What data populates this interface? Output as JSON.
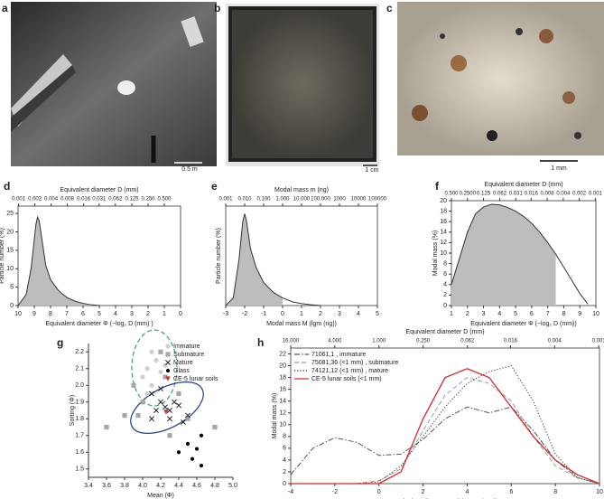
{
  "photos": [
    {
      "label": "a",
      "scale": "0.5 m"
    },
    {
      "label": "b",
      "scale": "1 cm"
    },
    {
      "label": "c",
      "scale": "1 mm"
    }
  ],
  "chart_data": [
    {
      "type": "area",
      "label": "d",
      "xlabel": "Equivalent diameter Φ (−log₂ D (mm) )",
      "ylabel": "Particle number (%)",
      "x2label": "Equivalent diameter D (mm)",
      "xlim": [
        10,
        0
      ],
      "xticks": [
        10,
        9,
        8,
        7,
        6,
        5,
        4,
        3,
        2,
        1,
        0
      ],
      "ylim": [
        0,
        27
      ],
      "yticks": [
        0,
        5,
        10,
        15,
        20,
        25
      ],
      "x2lim": [
        0.0009765625,
        1
      ],
      "x2log": true,
      "x2ticks": [
        0.001,
        0.002,
        0.004,
        0.008,
        0.016,
        0.031,
        0.062,
        0.125,
        {
          "value": 0.25,
          "label": "0.250"
        },
        {
          "value": 0.5,
          "label": "0.500"
        }
      ],
      "x": [
        10,
        9.5,
        9.2,
        9,
        8.9,
        8.8,
        8.7,
        8.5,
        8.3,
        8,
        7.5,
        7,
        6.5,
        6,
        5.5,
        5
      ],
      "values": [
        0,
        3,
        10,
        18,
        22,
        24,
        23,
        17,
        11,
        7,
        4,
        2.2,
        1.2,
        0.6,
        0.2,
        0
      ],
      "color": "#333333",
      "fill": "#bdbdbd"
    },
    {
      "type": "area",
      "label": "e",
      "xlabel": "Modal mass M (lgm (ng))",
      "ylabel": "Particle number (%)",
      "x2label": "Modal mass m (ng)",
      "xlim": [
        -3,
        5
      ],
      "xticks": [
        -3,
        -2,
        -1,
        0,
        1,
        2,
        3,
        4,
        5
      ],
      "ylim": [
        0,
        26
      ],
      "x2lim": [
        0.001,
        100000
      ],
      "x2log": true,
      "x2ticks": [
        0.001,
        {
          "value": 0.01,
          "label": "0.010"
        },
        {
          "value": 0.1,
          "label": "0.100"
        },
        {
          "value": 1,
          "label": "1.000"
        },
        {
          "value": 10,
          "label": "10.000"
        },
        {
          "value": 100,
          "label": "100.000"
        },
        1000,
        10000,
        100000
      ],
      "x": [
        -3,
        -2.6,
        -2.3,
        -2.1,
        -2,
        -1.9,
        -1.7,
        -1.4,
        -1,
        -0.5,
        0,
        0.5,
        1,
        1.5,
        2
      ],
      "values": [
        0,
        2,
        12,
        22,
        24,
        22,
        15,
        10,
        6,
        3.5,
        2,
        1,
        0.5,
        0.2,
        0
      ],
      "shaded_range": [
        -3,
        0
      ],
      "color": "#333333",
      "fill": "#bdbdbd"
    },
    {
      "type": "area",
      "label": "f",
      "xlabel": "Equivalent diameter Φ (−log₂ D (mm))",
      "ylabel": "Modal mass (%)",
      "x2label": "Equivalent diameter D (mm)",
      "xlim": [
        1,
        10
      ],
      "xticks": [
        1,
        2,
        3,
        4,
        5,
        6,
        7,
        8,
        9,
        10
      ],
      "ylim": [
        0,
        20
      ],
      "yticks": [
        0,
        2,
        4,
        6,
        8,
        10,
        12,
        14,
        16,
        18,
        20
      ],
      "x2lim": [
        0.5,
        0.0009765625
      ],
      "x2log": true,
      "x2ticks": [
        {
          "value": 0.5,
          "label": "0.500"
        },
        {
          "value": 0.25,
          "label": "0.2500"
        },
        0.125,
        0.062,
        0.031,
        0.016,
        0.008,
        0.004,
        0.002,
        0.001
      ],
      "x": [
        1,
        1.5,
        2,
        2.5,
        3,
        3.5,
        4,
        4.5,
        5,
        5.5,
        6,
        6.5,
        7,
        7.5,
        8,
        8.5,
        9,
        9.5
      ],
      "values": [
        4,
        9,
        14,
        17.5,
        18.8,
        19.3,
        19.2,
        18.7,
        18,
        17,
        15.7,
        14,
        12,
        9.8,
        7.3,
        4.8,
        2.3,
        0.3
      ],
      "shaded_range": [
        1,
        7.5
      ],
      "color": "#333333",
      "fill": "#bdbdbd"
    },
    {
      "type": "scatter",
      "label": "g",
      "xlabel": "Mean (Φ)",
      "ylabel": "Sorting (Φ)",
      "xlim": [
        3.4,
        5.0
      ],
      "xticks": [
        3.4,
        3.6,
        3.8,
        {
          "value": 4,
          "label": "4.0"
        },
        4.2,
        4.4,
        4.6,
        4.8,
        {
          "value": 5,
          "label": "5.0"
        }
      ],
      "ylim": [
        1.45,
        2.25
      ],
      "yticks": [
        1.5,
        1.6,
        1.7,
        1.8,
        1.9,
        {
          "value": 2,
          "label": "2.0"
        },
        2.1,
        2.2
      ],
      "series": [
        {
          "name": "Immature",
          "color": "#cfcfcf",
          "marker": "circle",
          "x": [
            4.1,
            4.15,
            4.05,
            4.2,
            4.0,
            4.1,
            4.25,
            4.05
          ],
          "values": [
            2.2,
            2.15,
            2.1,
            2.08,
            2.05,
            2.0,
            2.12,
            1.95
          ]
        },
        {
          "name": "Submature",
          "color": "#a6a6a6",
          "marker": "square",
          "x": [
            3.6,
            3.8,
            3.9,
            4.2,
            4.0,
            4.3,
            4.4,
            4.5,
            4.8,
            4.25,
            3.95
          ],
          "values": [
            1.75,
            1.82,
            2.0,
            2.2,
            1.9,
            1.7,
            1.95,
            1.8,
            1.75,
            2.05,
            1.82
          ]
        },
        {
          "name": "Mature",
          "color": "#222222",
          "marker": "x",
          "x": [
            4.1,
            4.2,
            4.25,
            4.3,
            4.35,
            4.4,
            4.15,
            4.3,
            4.5,
            4.2,
            4.1,
            4.45
          ],
          "values": [
            1.95,
            1.9,
            1.87,
            1.85,
            1.9,
            1.88,
            1.85,
            1.8,
            1.82,
            1.98,
            1.8,
            1.78
          ]
        },
        {
          "name": "Glass",
          "color": "#000000",
          "marker": "dot",
          "x": [
            4.5,
            4.6,
            4.65,
            4.4,
            4.55,
            4.65
          ],
          "values": [
            1.65,
            1.62,
            1.7,
            1.6,
            1.56,
            1.52
          ]
        },
        {
          "name": "CE-5 lunar soils",
          "color": "#d62728",
          "marker": "triangle",
          "x": [
            4.26
          ],
          "values": [
            1.84
          ]
        }
      ]
    },
    {
      "type": "line",
      "label": "h",
      "xlabel": "Equivalent diameter Φ (−log₂ D (mm))",
      "ylabel": "Modal mass (%)",
      "x2label": "Equivalent diameter D (mm)",
      "xlim": [
        -4,
        10
      ],
      "xticks": [
        -4,
        -2,
        0,
        2,
        4,
        6,
        8,
        10
      ],
      "ylim": [
        0,
        23
      ],
      "yticks": [
        0,
        2,
        4,
        6,
        8,
        10,
        12,
        14,
        16,
        18,
        20,
        22
      ],
      "x2lim": [
        16,
        0.0009765625
      ],
      "x2log": true,
      "x2ticks": [
        {
          "value": 16,
          "label": "16.000"
        },
        {
          "value": 4,
          "label": "4.000"
        },
        {
          "value": 1,
          "label": "1.000"
        },
        {
          "value": 0.25,
          "label": "0.250"
        },
        0.062,
        0.016,
        0.004,
        0.001
      ],
      "x": [
        -4,
        -3,
        -2,
        -1,
        0,
        1,
        2,
        3,
        4,
        5,
        6,
        7,
        8,
        9,
        10
      ],
      "series": [
        {
          "name": "71061,1 , immature",
          "color": "#555555",
          "dash": "dashdot",
          "values": [
            1.5,
            6,
            7.8,
            7,
            4.8,
            5,
            7.5,
            11,
            13,
            12,
            13,
            9,
            4,
            1,
            0
          ]
        },
        {
          "name": "75081,36 (<1 mm) , submature",
          "color": "#9a9a9a",
          "dash": "dash",
          "values": [
            0,
            0,
            0,
            0,
            0.5,
            2.5,
            9,
            15,
            18,
            17,
            14,
            8,
            3,
            1,
            0
          ]
        },
        {
          "name": "74121,12 (<1 mm) , mature",
          "color": "#333333",
          "dash": "dot",
          "values": [
            0,
            0,
            0,
            0,
            0.3,
            3,
            8,
            13,
            17,
            19,
            20,
            14,
            5,
            1,
            0
          ]
        },
        {
          "name": "CE-5 lunar soils (<1 mm)",
          "color": "#d62728",
          "dash": "solid",
          "values": [
            0,
            0,
            0,
            0,
            0,
            2,
            11,
            18,
            19.5,
            18,
            13,
            8,
            4,
            1.5,
            0
          ]
        }
      ]
    }
  ]
}
